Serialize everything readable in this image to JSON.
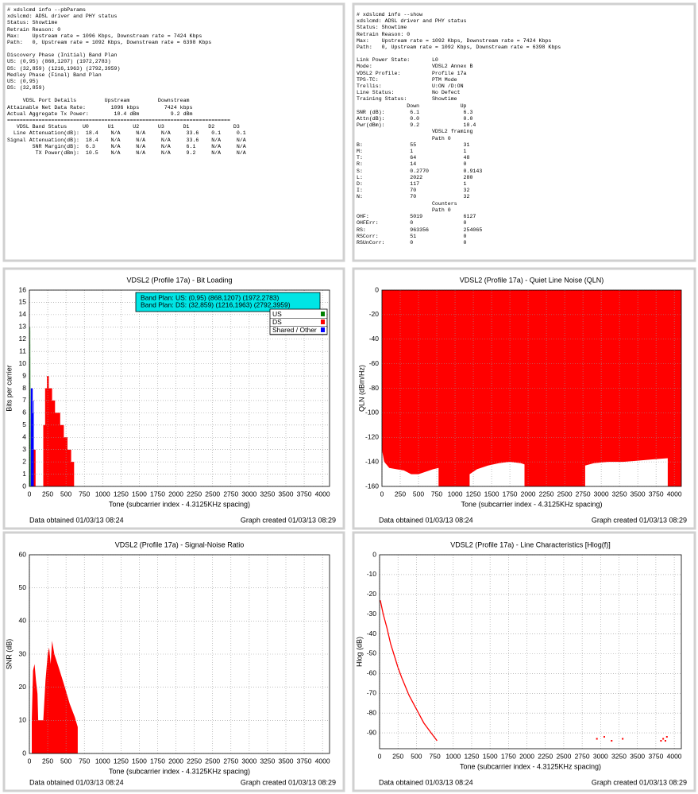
{
  "panels": [
    {
      "blocks": [
        [
          "# xdslcmd info --pbParams",
          "xdslcmd: ADSL driver and PHY status",
          "Status: Showtime",
          "Retrain Reason: 0",
          "Max:    Upstream rate = 1096 Kbps, Downstream rate = 7424 Kbps",
          "Path:   0, Upstream rate = 1092 Kbps, Downstream rate = 6398 Kbps"
        ],
        [
          "Discovery Phase (Initial) Band Plan",
          "US: (0,95) (868,1207) (1972,2783)",
          "DS: (32,859) (1216,1963) (2792,3959)",
          "Medley Phase (Final) Band Plan",
          "US: (0,95)",
          "DS: (32,859)"
        ],
        [
          "     VDSL Port Details         Upstream         Downstream",
          "Attainable Net Data Rate:        1096 kbps        7424 kbps",
          "Actual Aggregate Tx Power:        10.4 dBm          9.2 dBm",
          "=======================================================================",
          "   VDSL Band Status     U0      U1      U2      U3      D1      D2      D3",
          "  Line Attenuation(dB):  18.4    N/A     N/A     N/A     33.6    0.1     0.1",
          "Signal Attenuation(dB):  18.4    N/A     N/A     N/A     33.6    N/A     N/A",
          "        SNR Margin(dB):  6.3     N/A     N/A     N/A     6.1     N/A     N/A",
          "         TX Power(dBm):  10.5    N/A     N/A     N/A     9.2     N/A     N/A"
        ]
      ]
    },
    {
      "blocks": [
        [
          "# xdslcmd info --show",
          "xdslcmd: ADSL driver and PHY status",
          "Status: Showtime",
          "Retrain Reason: 0",
          "Max:    Upstream rate = 1092 Kbps, Downstream rate = 7424 Kbps",
          "Path:   0, Upstream rate = 1092 Kbps, Downstream rate = 6398 Kbps"
        ],
        [
          "Link Power State:       L0",
          "Mode:                   VDSL2 Annex B",
          "VDSL2 Profile:          Profile 17a",
          "TPS-TC:                 PTM Mode",
          "Trellis:                U:ON /D:ON",
          "Line Status:            No Defect",
          "Training Status:        Showtime",
          "                Down             Up",
          "SNR (dB):        6.1              6.3",
          "Attn(dB):        0.0              0.0",
          "Pwr(dBm):        9.2              10.4",
          "                        VDSL2 framing",
          "                        Path 0",
          "B:               55               31",
          "M:               1                1",
          "T:               64               48",
          "R:               14               0",
          "S:               0.2770           0.9143",
          "L:               2022             280",
          "D:               117              1",
          "I:               70               32",
          "N:               70               32",
          "                        Counters",
          "                        Path 0",
          "OHF:             5019             6127",
          "OHFErr:          0                0",
          "RS:              963356           254065",
          "RSCorr:          51               0",
          "RSUnCorr:        0                0"
        ]
      ]
    }
  ],
  "charts": [
    {
      "type": "area",
      "title": "VDSL2 (Profile 17a) - Bit Loading",
      "xlabel": "Tone (subcarrier index - 4.3125KHz spacing)",
      "ylabel": "Bits per carrier",
      "xlim": [
        0,
        4096
      ],
      "xticks": [
        0,
        250,
        500,
        750,
        1000,
        1250,
        1500,
        1750,
        2000,
        2250,
        2500,
        2750,
        3000,
        3250,
        3500,
        3750,
        4000
      ],
      "ylim": [
        0,
        16
      ],
      "yticks": [
        0,
        1,
        2,
        3,
        4,
        5,
        6,
        7,
        8,
        9,
        10,
        11,
        12,
        13,
        14,
        15,
        16
      ],
      "grid": true,
      "fill_to": "bottom",
      "legend": "upper right",
      "band_plan": [
        "Band Plan: US: (0,95) (868,1207) (1972,2783)",
        "Band Plan: DS: (32,859) (1216,1963) (2792,3959)"
      ],
      "series": [
        {
          "name": "US",
          "color": "#008000",
          "x": [
            4,
            8,
            12,
            16
          ],
          "values": [
            0,
            13,
            13,
            0
          ]
        },
        {
          "name": "DS",
          "color": "#ff0000",
          "x": [
            50,
            50,
            85,
            85,
            190,
            190,
            215,
            215,
            240,
            240,
            265,
            265,
            310,
            310,
            350,
            350,
            420,
            420,
            470,
            470,
            520,
            520,
            570,
            570,
            610,
            610
          ],
          "values": [
            0,
            3,
            3,
            0,
            0,
            5,
            5,
            8,
            8,
            9,
            9,
            8,
            8,
            7,
            7,
            6,
            6,
            5,
            5,
            4,
            4,
            3,
            3,
            2,
            2,
            0
          ]
        },
        {
          "name": "Shared / Other",
          "color": "#0000ff",
          "x": [
            20,
            20,
            45,
            45,
            52,
            52,
            60,
            60
          ],
          "values": [
            0,
            8,
            8,
            6,
            6,
            7,
            7,
            0
          ]
        }
      ],
      "footer_left": "Data obtained 01/03/13 08:24",
      "footer_right": "Graph created 01/03/13 08:29"
    },
    {
      "type": "area",
      "title": "VDSL2 (Profile 17a) - Quiet Line Noise (QLN)",
      "xlabel": "Tone (subcarrier index - 4.3125KHz spacing)",
      "ylabel": "QLN (dBm/Hz)",
      "xlim": [
        0,
        4096
      ],
      "xticks": [
        0,
        250,
        500,
        750,
        1000,
        1250,
        1500,
        1750,
        2000,
        2250,
        2500,
        2750,
        3000,
        3250,
        3500,
        3750,
        4000
      ],
      "ylim": [
        -160,
        0
      ],
      "yticks": [
        -160,
        -140,
        -120,
        -100,
        -80,
        -60,
        -40,
        -20,
        0
      ],
      "grid": true,
      "fill_to": "top",
      "series": [
        {
          "color": "#ff0000",
          "x": [
            0,
            30,
            60,
            100,
            200,
            300,
            400,
            500,
            600,
            700,
            775,
            775,
            1200,
            1200,
            1300,
            1450,
            1600,
            1750,
            1900,
            1950,
            1950,
            2780,
            2780,
            2900,
            3100,
            3300,
            3500,
            3700,
            3910,
            3910,
            4096
          ],
          "values": [
            -130,
            -140,
            -142,
            -145,
            -146,
            -147,
            -150,
            -150,
            -148,
            -146,
            -145,
            -160,
            -160,
            -150,
            -146,
            -143,
            -141,
            -140,
            -141,
            -142,
            -160,
            -160,
            -143,
            -141,
            -140,
            -140,
            -139,
            -138,
            -137,
            -160,
            -160
          ]
        }
      ],
      "footer_left": "Data obtained 01/03/13 08:24",
      "footer_right": "Graph created 01/03/13 08:29"
    },
    {
      "type": "area",
      "title": "VDSL2 (Profile 17a) - Signal-Noise Ratio",
      "xlabel": "Tone (subcarrier index - 4.3125KHz spacing)",
      "ylabel": "SNR (dB)",
      "xlim": [
        0,
        4096
      ],
      "xticks": [
        0,
        250,
        500,
        750,
        1000,
        1250,
        1500,
        1750,
        2000,
        2250,
        2500,
        2750,
        3000,
        3250,
        3500,
        3750,
        4000
      ],
      "ylim": [
        0,
        60
      ],
      "yticks": [
        0,
        10,
        20,
        30,
        40,
        50,
        60
      ],
      "grid": true,
      "fill_to": "bottom",
      "series": [
        {
          "color": "#ff0000",
          "x": [
            32,
            32,
            50,
            70,
            90,
            110,
            120,
            120,
            190,
            190,
            220,
            250,
            270,
            290,
            310,
            340,
            400,
            470,
            550,
            620,
            660,
            660
          ],
          "values": [
            0,
            10,
            25,
            27,
            22,
            18,
            10,
            10,
            10,
            10,
            22,
            30,
            32,
            27,
            34,
            30,
            26,
            21,
            15,
            11,
            8,
            0
          ]
        }
      ],
      "footer_left": "Data obtained 01/03/13 08:24",
      "footer_right": "Graph created 01/03/13 08:29"
    },
    {
      "type": "line",
      "title": "VDSL2 (Profile 17a) - Line Characteristics [Hlog(f)]",
      "xlabel": "Tone (subcarrier index - 4.3125KHz spacing)",
      "ylabel": "Hlog (dB)",
      "xlim": [
        0,
        4096
      ],
      "xticks": [
        0,
        250,
        500,
        750,
        1000,
        1250,
        1500,
        1750,
        2000,
        2250,
        2500,
        2750,
        3000,
        3250,
        3500,
        3750,
        4000
      ],
      "ylim": [
        -98,
        0
      ],
      "yticks": [
        -90,
        -80,
        -70,
        -60,
        -50,
        -40,
        -30,
        -20,
        -10,
        0
      ],
      "grid": true,
      "series": [
        {
          "color": "#ff0000",
          "x": [
            10,
            50,
            100,
            150,
            200,
            250,
            300,
            400,
            500,
            600,
            700,
            780
          ],
          "values": [
            -23,
            -30,
            -37,
            -45,
            -51,
            -57,
            -62,
            -71,
            -78,
            -85,
            -90,
            -94
          ]
        },
        {
          "color": "#ff0000",
          "markers": true,
          "x": [
            2950,
            3050,
            3150,
            3300,
            3820,
            3850,
            3880,
            3900
          ],
          "values": [
            -93,
            -92,
            -94,
            -93,
            -94,
            -93,
            -94,
            -92
          ]
        }
      ],
      "footer_left": "Data obtained 01/03/13 08:24",
      "footer_right": "Graph created 01/03/13 08:29"
    }
  ]
}
